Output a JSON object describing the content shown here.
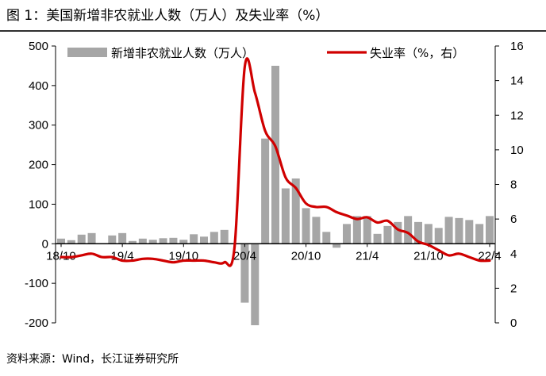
{
  "header": {
    "title": "图 1：美国新增非农就业人数（万人）及失业率（%）"
  },
  "footer": {
    "source": "资料来源：Wind，长江证券研究所"
  },
  "chart_data": {
    "type": "bar+line",
    "title": "图 1：美国新增非农就业人数（万人）及失业率（%）",
    "x_tick_labels": [
      "18/10",
      "19/4",
      "19/10",
      "20/4",
      "20/10",
      "21/4",
      "21/10",
      "22/4"
    ],
    "x": [
      "18/10",
      "18/11",
      "18/12",
      "19/1",
      "19/2",
      "19/3",
      "19/4",
      "19/5",
      "19/6",
      "19/7",
      "19/8",
      "19/9",
      "19/10",
      "19/11",
      "19/12",
      "20/1",
      "20/2",
      "20/3",
      "20/4",
      "20/5",
      "20/6",
      "20/7",
      "20/8",
      "20/9",
      "20/10",
      "20/11",
      "20/12",
      "21/1",
      "21/2",
      "21/3",
      "21/4",
      "21/5",
      "21/6",
      "21/7",
      "21/8",
      "21/9",
      "21/10",
      "21/11",
      "21/12",
      "22/1",
      "22/2",
      "22/3",
      "22/4"
    ],
    "left_axis": {
      "ylim": [
        -200,
        500
      ],
      "ticks": [
        -200,
        -100,
        0,
        100,
        200,
        300,
        400,
        500
      ]
    },
    "right_axis": {
      "ylim": [
        0,
        16
      ],
      "ticks": [
        0,
        2,
        4,
        6,
        8,
        10,
        12,
        14,
        16
      ]
    },
    "legend": {
      "placement": "top",
      "entries": [
        "新增非农就业人数（万人）",
        "失业率（%，右）"
      ]
    },
    "series": [
      {
        "name": "新增非农就业人数（万人）",
        "type": "bar",
        "axis": "left",
        "color": "#a6a6a6",
        "values": [
          13,
          9,
          23,
          27,
          0,
          21,
          27,
          7,
          13,
          10,
          14,
          15,
          10,
          24,
          18,
          30,
          35,
          0,
          -149,
          -206,
          266,
          450,
          140,
          165,
          90,
          68,
          30,
          -10,
          50,
          70,
          70,
          25,
          45,
          55,
          70,
          55,
          50,
          40,
          68,
          65,
          60,
          50,
          70
        ]
      },
      {
        "name": "失业率（%，右）",
        "type": "line",
        "axis": "right",
        "color": "#d00000",
        "values": [
          3.8,
          3.8,
          3.9,
          4.0,
          3.8,
          3.8,
          3.6,
          3.6,
          3.7,
          3.7,
          3.6,
          3.5,
          3.6,
          3.6,
          3.6,
          3.5,
          3.5,
          4.4,
          14.8,
          13.3,
          11.1,
          10.2,
          8.4,
          7.8,
          6.9,
          6.7,
          6.7,
          6.4,
          6.2,
          6.0,
          6.1,
          5.8,
          5.9,
          5.4,
          5.2,
          4.7,
          4.5,
          4.2,
          3.9,
          4.0,
          3.8,
          3.6,
          3.6
        ]
      }
    ]
  }
}
